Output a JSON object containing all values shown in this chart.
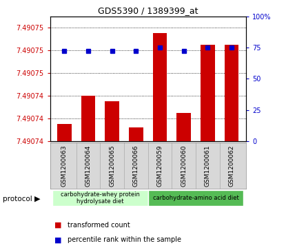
{
  "title": "GDS5390 / 1389399_at",
  "samples": [
    "GSM1200063",
    "GSM1200064",
    "GSM1200065",
    "GSM1200066",
    "GSM1200059",
    "GSM1200060",
    "GSM1200061",
    "GSM1200062"
  ],
  "bar_values": [
    7.4907415,
    7.490744,
    7.4907435,
    7.4907412,
    7.4907495,
    7.4907425,
    7.4907485,
    7.4907485
  ],
  "percentile_values": [
    72,
    72,
    72,
    72,
    75,
    72,
    75,
    75
  ],
  "y_min": 7.49074,
  "y_max": 7.490751,
  "y_ticks": [
    7.49074,
    7.490742,
    7.490744,
    7.490746,
    7.490748,
    7.49075
  ],
  "y_tick_labels": [
    "7.49074",
    "7.49074",
    "7.49074",
    "7.49075",
    "7.49075",
    "7.49075"
  ],
  "y2_ticks": [
    0,
    25,
    50,
    75,
    100
  ],
  "y2_tick_labels": [
    "0",
    "25",
    "50",
    "75",
    "100%"
  ],
  "bar_color": "#cc0000",
  "dot_color": "#0000cc",
  "bar_width": 0.6,
  "group1_label": "carbohydrate-whey protein\nhydrolysate diet",
  "group2_label": "carbohydrate-amino acid diet",
  "group1_color": "#ccffcc",
  "group2_color": "#55bb55",
  "group1_indices": [
    0,
    1,
    2,
    3
  ],
  "group2_indices": [
    4,
    5,
    6,
    7
  ],
  "legend_bar_label": "transformed count",
  "legend_dot_label": "percentile rank within the sample",
  "protocol_label": "protocol",
  "sample_bg_color": "#d8d8d8",
  "left_axis_color": "#cc0000",
  "right_axis_color": "#0000cc"
}
